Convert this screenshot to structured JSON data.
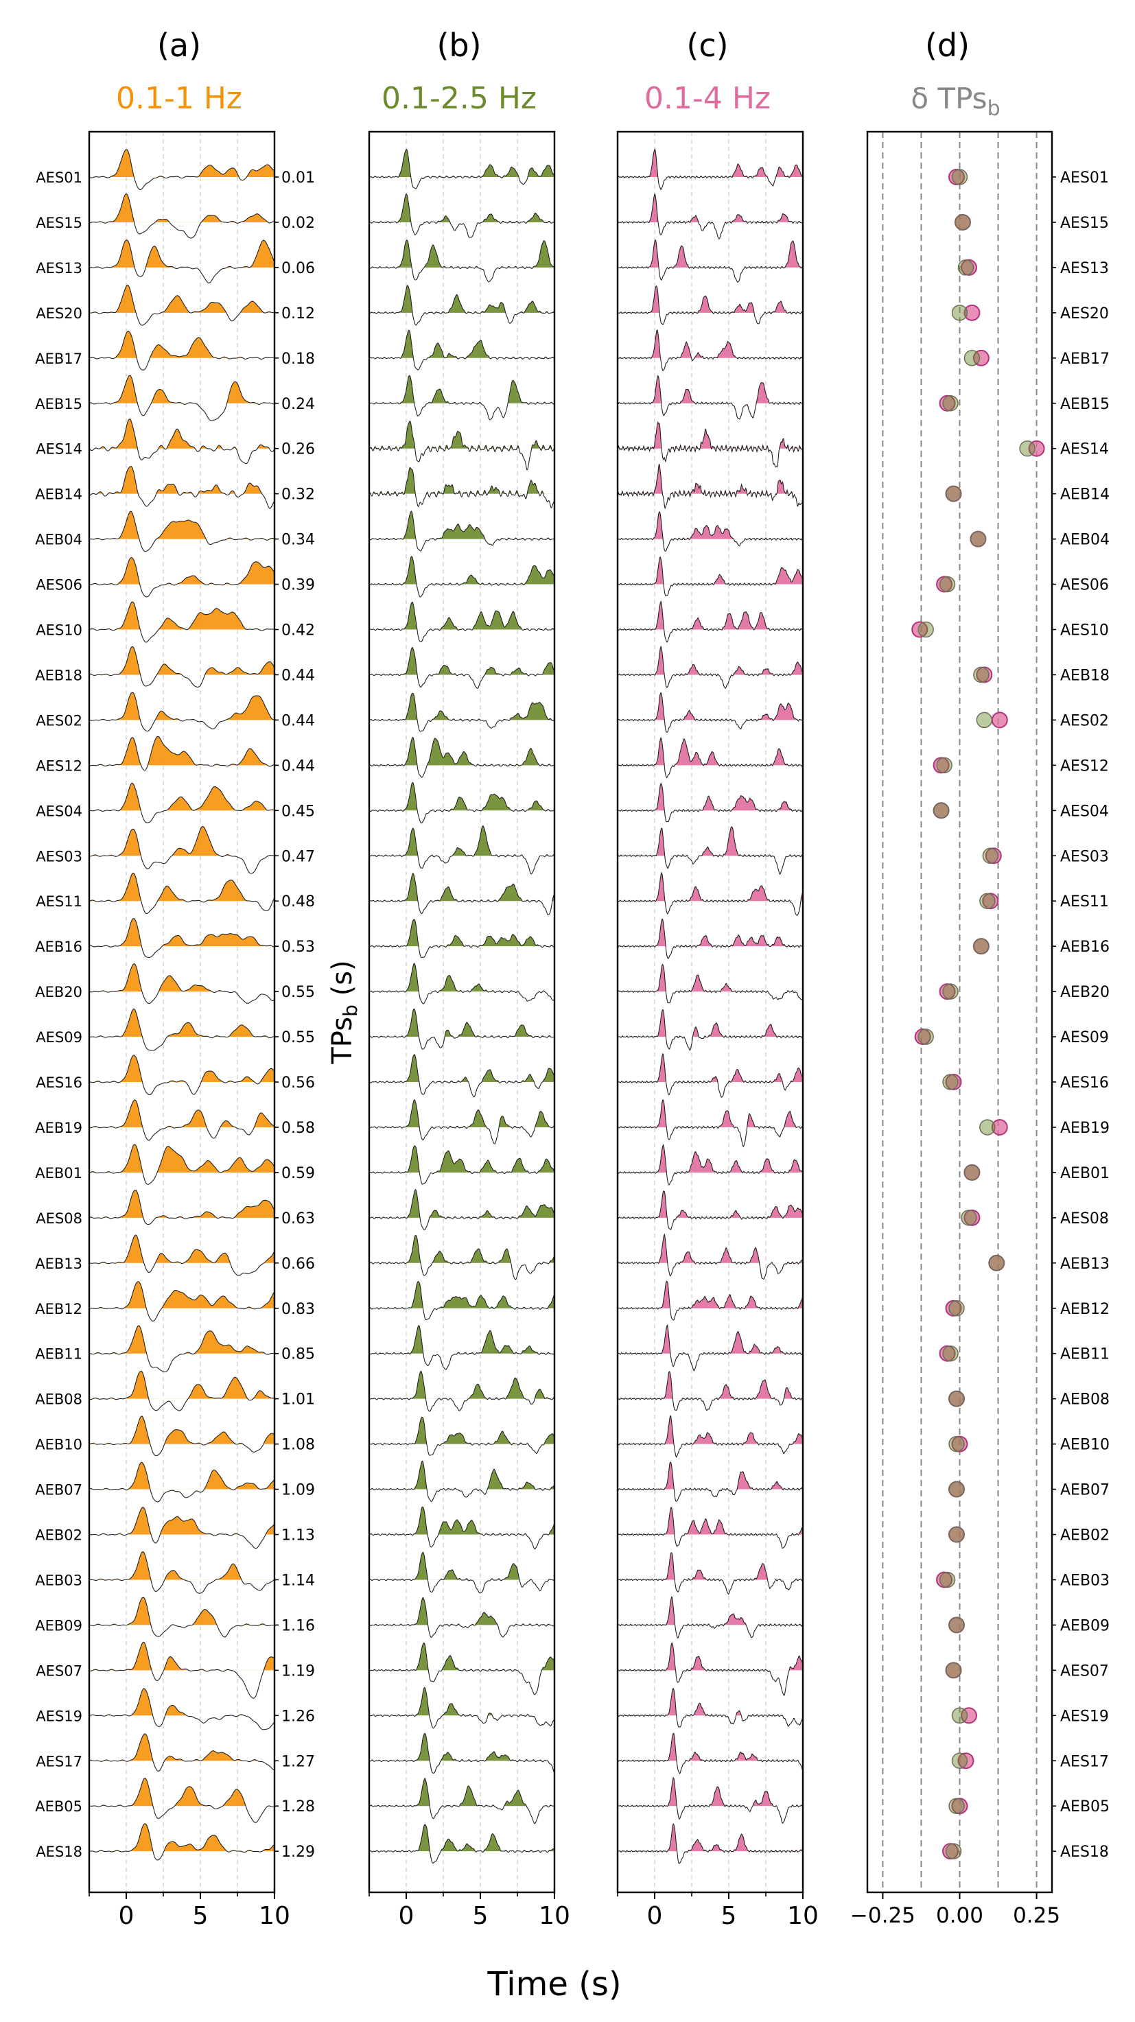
{
  "figure": {
    "xlabel": "Time (s)",
    "ylabel_main": "TPs",
    "ylabel_sub": "b",
    "ylabel_unit": " (s)"
  },
  "panels": [
    {
      "label": "(a)",
      "title": "0.1-1 Hz",
      "color": "#f5920a"
    },
    {
      "label": "(b)",
      "title": "0.1-2.5 Hz",
      "color": "#6b8a2b"
    },
    {
      "label": "(c)",
      "title": "0.1-4 Hz",
      "color": "#e06b9f"
    },
    {
      "label": "(d)",
      "title_main": "δ TPs",
      "title_sub": "b",
      "color": "#888888"
    }
  ],
  "chart_data": [
    {
      "type": "line",
      "panel": "(a)",
      "title": "0.1-1 Hz",
      "xlim": [
        -2.5,
        10
      ],
      "xticks": [
        0,
        5,
        10
      ],
      "grid": "vertical dashed at 0, 2.5, 5, 7.5",
      "stations": [
        "AES01",
        "AES15",
        "AES13",
        "AES20",
        "AEB17",
        "AEB15",
        "AES14",
        "AEB14",
        "AEB04",
        "AES06",
        "AES10",
        "AEB18",
        "AES02",
        "AES12",
        "AES04",
        "AES03",
        "AES11",
        "AEB16",
        "AEB20",
        "AES09",
        "AES16",
        "AEB19",
        "AEB01",
        "AES08",
        "AEB13",
        "AEB12",
        "AEB11",
        "AEB08",
        "AEB10",
        "AEB07",
        "AEB02",
        "AEB03",
        "AEB09",
        "AES07",
        "AES19",
        "AES17",
        "AEB05",
        "AES18"
      ],
      "tps_b_s": [
        "0.01",
        "0.02",
        "0.06",
        "0.12",
        "0.18",
        "0.24",
        "0.26",
        "0.32",
        "0.34",
        "0.39",
        "0.42",
        "0.44",
        "0.44",
        "0.44",
        "0.45",
        "0.47",
        "0.48",
        "0.53",
        "0.55",
        "0.55",
        "0.56",
        "0.58",
        "0.59",
        "0.63",
        "0.66",
        "0.83",
        "0.85",
        "1.01",
        "1.08",
        "1.09",
        "1.13",
        "1.14",
        "1.16",
        "1.19",
        "1.26",
        "1.27",
        "1.28",
        "1.29"
      ]
    },
    {
      "type": "line",
      "panel": "(b)",
      "title": "0.1-2.5 Hz",
      "xlim": [
        -2.5,
        10
      ],
      "xticks": [
        0,
        5,
        10
      ]
    },
    {
      "type": "line",
      "panel": "(c)",
      "title": "0.1-4 Hz",
      "xlim": [
        -2.5,
        10
      ],
      "xticks": [
        0,
        5,
        10
      ]
    },
    {
      "type": "scatter",
      "panel": "(d)",
      "title": "δ TPsb",
      "xlim": [
        -0.3,
        0.3
      ],
      "xticks": [
        -0.25,
        0.0,
        0.25
      ],
      "xtick_labels": [
        "−0.25",
        "0.00",
        "0.25"
      ],
      "vlines": [
        -0.25,
        -0.125,
        0.0,
        0.125,
        0.25
      ],
      "series": [
        {
          "color": "#6b8a2b",
          "values": [
            0.0,
            0.01,
            0.02,
            0.0,
            0.04,
            -0.03,
            0.22,
            -0.02,
            0.06,
            -0.04,
            -0.11,
            0.07,
            0.08,
            -0.05,
            -0.06,
            0.1,
            0.09,
            0.07,
            -0.03,
            -0.11,
            -0.03,
            0.09,
            0.04,
            0.03,
            0.12,
            -0.01,
            -0.03,
            -0.01,
            -0.01,
            -0.01,
            -0.01,
            -0.04,
            -0.01,
            -0.02,
            0.0,
            0.0,
            -0.01,
            -0.02
          ]
        },
        {
          "color": "#e06b9f",
          "values": [
            -0.01,
            0.01,
            0.03,
            0.04,
            0.07,
            -0.04,
            0.25,
            -0.02,
            0.06,
            -0.05,
            -0.13,
            0.08,
            0.13,
            -0.06,
            -0.06,
            0.11,
            0.1,
            0.07,
            -0.04,
            -0.12,
            -0.02,
            0.13,
            0.04,
            0.04,
            0.12,
            -0.02,
            -0.04,
            -0.01,
            0.0,
            -0.01,
            -0.01,
            -0.05,
            -0.01,
            -0.02,
            0.03,
            0.02,
            0.0,
            -0.03
          ]
        }
      ]
    }
  ]
}
